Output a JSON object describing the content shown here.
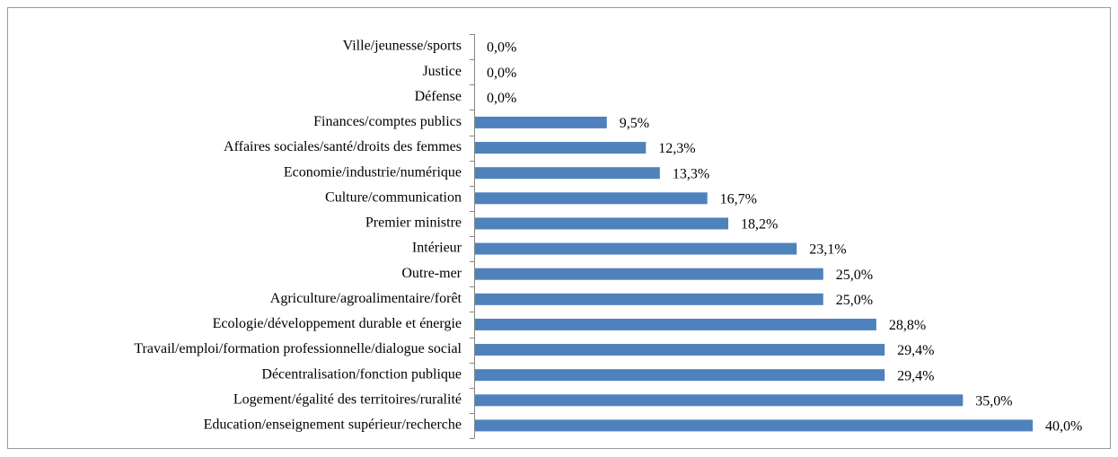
{
  "chart_data": {
    "type": "bar",
    "orientation": "horizontal",
    "color": "#4f81bd",
    "categories": [
      "Ville/jeunesse/sports",
      "Justice",
      "Défense",
      "Finances/comptes publics",
      "Affaires sociales/santé/droits des femmes",
      "Economie/industrie/numérique",
      "Culture/communication",
      "Premier ministre",
      "Intérieur",
      "Outre-mer",
      "Agriculture/agroalimentaire/forêt",
      "Ecologie/développement durable et énergie",
      "Travail/emploi/formation professionnelle/dialogue social",
      "Décentralisation/fonction publique",
      "Logement/égalité des territoires/ruralité",
      "Education/enseignement supérieur/recherche"
    ],
    "values": [
      0,
      0,
      0,
      9.5,
      12.3,
      13.3,
      16.7,
      18.2,
      23.1,
      25.0,
      25.0,
      28.8,
      29.4,
      29.4,
      35.0,
      40.0
    ],
    "value_labels": [
      "0,0%",
      "0,0%",
      "0,0%",
      "9,5%",
      "12,3%",
      "13,3%",
      "16,7%",
      "18,2%",
      "23,1%",
      "25,0%",
      "25,0%",
      "28,8%",
      "29,4%",
      "29,4%",
      "35,0%",
      "40,0%"
    ]
  }
}
